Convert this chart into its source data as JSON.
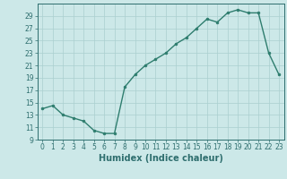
{
  "x": [
    0,
    1,
    2,
    3,
    4,
    5,
    6,
    7,
    8,
    9,
    10,
    11,
    12,
    13,
    14,
    15,
    16,
    17,
    18,
    19,
    20,
    21,
    22,
    23
  ],
  "y": [
    14,
    14.5,
    13,
    12.5,
    12,
    10.5,
    10,
    10,
    17.5,
    19.5,
    21,
    22,
    23,
    24.5,
    25.5,
    27,
    28.5,
    28,
    29.5,
    30,
    29.5,
    29.5,
    23,
    19.5
  ],
  "line_color": "#2e7d6e",
  "marker": "o",
  "marker_size": 2,
  "background_color": "#cce8e8",
  "grid_color": "#aacfcf",
  "xlabel": "Humidex (Indice chaleur)",
  "ylabel": "",
  "ylim": [
    9,
    31
  ],
  "xlim": [
    -0.5,
    23.5
  ],
  "yticks": [
    9,
    11,
    13,
    15,
    17,
    19,
    21,
    23,
    25,
    27,
    29
  ],
  "xticks": [
    0,
    1,
    2,
    3,
    4,
    5,
    6,
    7,
    8,
    9,
    10,
    11,
    12,
    13,
    14,
    15,
    16,
    17,
    18,
    19,
    20,
    21,
    22,
    23
  ],
  "font_color": "#2e6e6e",
  "tick_fontsize": 5.5,
  "label_fontsize": 7
}
